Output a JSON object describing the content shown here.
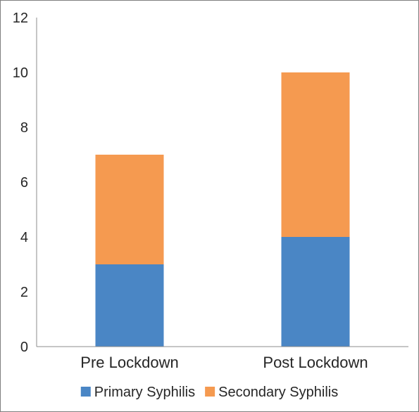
{
  "chart_data": {
    "type": "bar",
    "stacked": true,
    "categories": [
      "Pre Lockdown",
      "Post Lockdown"
    ],
    "series": [
      {
        "name": "Primary Syphilis",
        "values": [
          3,
          4
        ],
        "color": "#4a86c5"
      },
      {
        "name": "Secondary Syphilis",
        "values": [
          4,
          6
        ],
        "color": "#f59a50"
      }
    ],
    "ylim": [
      0,
      12
    ],
    "yticks": [
      0,
      2,
      4,
      6,
      8,
      10,
      12
    ],
    "grid": false,
    "legend_position": "bottom"
  }
}
